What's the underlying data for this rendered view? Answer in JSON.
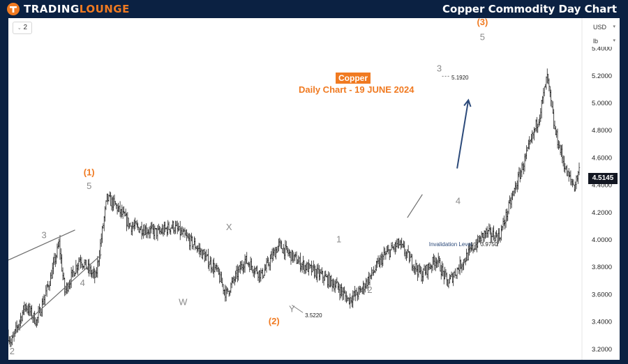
{
  "header": {
    "brand": "TRADINGLOUNGE",
    "brand_accent_part": "LOUNGE",
    "title": "Copper Commodity Day Chart"
  },
  "toolbar": {
    "interval": "2",
    "currency": "USD",
    "unit": "lb"
  },
  "chart_header": {
    "symbol": "Copper",
    "subtitle": "Daily Chart - 19 JUNE 2024"
  },
  "colors": {
    "background": "#0b2142",
    "accent": "#f07a21",
    "wave_gray": "#8a8a8a",
    "arrow": "#2c4a7a",
    "candle": "#1f1f1f"
  },
  "chart_data": {
    "type": "candlestick",
    "ylim": [
      3.12,
      5.62
    ],
    "yticks": [
      3.2,
      3.4,
      3.6,
      3.8,
      4.0,
      4.2,
      4.4,
      4.6,
      4.8,
      5.0,
      5.2,
      5.4
    ],
    "ytick_labels": [
      "3.2000",
      "3.4000",
      "3.6000",
      "3.8000",
      "4.0000",
      "4.2000",
      "4.4000",
      "4.6000",
      "4.8000",
      "5.0000",
      "5.2000",
      "5.4000"
    ],
    "current_price": "4.5145",
    "price_anchors": [
      {
        "i": 0,
        "v": 3.3
      },
      {
        "i": 3,
        "v": 3.24
      },
      {
        "i": 18,
        "v": 3.52
      },
      {
        "i": 30,
        "v": 3.4
      },
      {
        "i": 45,
        "v": 3.72
      },
      {
        "i": 54,
        "v": 3.97
      },
      {
        "i": 60,
        "v": 3.62
      },
      {
        "i": 76,
        "v": 3.86
      },
      {
        "i": 93,
        "v": 3.72
      },
      {
        "i": 105,
        "v": 4.3
      },
      {
        "i": 114,
        "v": 4.25
      },
      {
        "i": 130,
        "v": 4.1
      },
      {
        "i": 160,
        "v": 4.05
      },
      {
        "i": 175,
        "v": 4.1
      },
      {
        "i": 200,
        "v": 3.95
      },
      {
        "i": 222,
        "v": 3.77
      },
      {
        "i": 232,
        "v": 3.6
      },
      {
        "i": 252,
        "v": 3.85
      },
      {
        "i": 270,
        "v": 3.74
      },
      {
        "i": 288,
        "v": 3.96
      },
      {
        "i": 312,
        "v": 3.82
      },
      {
        "i": 335,
        "v": 3.73
      },
      {
        "i": 350,
        "v": 3.66
      },
      {
        "i": 362,
        "v": 3.56
      },
      {
        "i": 375,
        "v": 3.62
      },
      {
        "i": 400,
        "v": 3.88
      },
      {
        "i": 416,
        "v": 3.97
      },
      {
        "i": 440,
        "v": 3.74
      },
      {
        "i": 456,
        "v": 3.86
      },
      {
        "i": 468,
        "v": 3.68
      },
      {
        "i": 482,
        "v": 3.82
      },
      {
        "i": 494,
        "v": 3.93
      },
      {
        "i": 508,
        "v": 4.05
      },
      {
        "i": 523,
        "v": 4.02
      },
      {
        "i": 540,
        "v": 4.38
      },
      {
        "i": 556,
        "v": 4.7
      },
      {
        "i": 566,
        "v": 4.92
      },
      {
        "i": 574,
        "v": 5.19
      },
      {
        "i": 582,
        "v": 4.8
      },
      {
        "i": 595,
        "v": 4.48
      },
      {
        "i": 603,
        "v": 4.39
      },
      {
        "i": 608,
        "v": 4.51
      }
    ],
    "bar_count": 609,
    "wave_labels": [
      {
        "text": "2",
        "i": 4,
        "v": 3.16,
        "color": "gray"
      },
      {
        "text": "3",
        "i": 38,
        "v": 4.01,
        "color": "gray"
      },
      {
        "text": "4",
        "i": 79,
        "v": 3.66,
        "color": "gray"
      },
      {
        "text": "(1)",
        "i": 86,
        "v": 4.47,
        "color": "orange"
      },
      {
        "text": "5",
        "i": 86,
        "v": 4.37,
        "color": "gray"
      },
      {
        "text": "W",
        "i": 186,
        "v": 3.52,
        "color": "gray"
      },
      {
        "text": "X",
        "i": 235,
        "v": 4.07,
        "color": "gray"
      },
      {
        "text": "Y",
        "i": 302,
        "v": 3.47,
        "color": "gray"
      },
      {
        "text": "(2)",
        "i": 283,
        "v": 3.38,
        "color": "orange"
      },
      {
        "text": "1",
        "i": 352,
        "v": 3.98,
        "color": "gray"
      },
      {
        "text": "2",
        "i": 385,
        "v": 3.61,
        "color": "gray"
      },
      {
        "text": "3",
        "i": 459,
        "v": 5.23,
        "color": "gray"
      },
      {
        "text": "4",
        "i": 479,
        "v": 4.26,
        "color": "gray"
      },
      {
        "text": "(3)",
        "i": 505,
        "v": 5.57,
        "color": "orange"
      },
      {
        "text": "5",
        "i": 505,
        "v": 5.46,
        "color": "gray"
      }
    ],
    "annotations": [
      {
        "text": "5.1920",
        "i": 472,
        "v": 5.19
      },
      {
        "text": "3.5220",
        "i": 316,
        "v": 3.45
      },
      {
        "text": "Invalidation Level",
        "i": 448,
        "v": 3.97
      },
      {
        "text": "3.9750",
        "i": 503,
        "v": 3.97
      }
    ],
    "trendlines": [
      {
        "from": {
          "i": 0,
          "v": 3.85
        },
        "to": {
          "i": 71,
          "v": 4.07
        }
      },
      {
        "from": {
          "i": 1,
          "v": 3.28
        },
        "to": {
          "i": 99,
          "v": 3.89
        }
      },
      {
        "from": {
          "i": 425,
          "v": 4.16
        },
        "to": {
          "i": 441,
          "v": 4.33
        }
      }
    ],
    "arrow": {
      "from": {
        "i": 478,
        "v": 4.52
      },
      "to": {
        "i": 490,
        "v": 5.02
      }
    }
  }
}
